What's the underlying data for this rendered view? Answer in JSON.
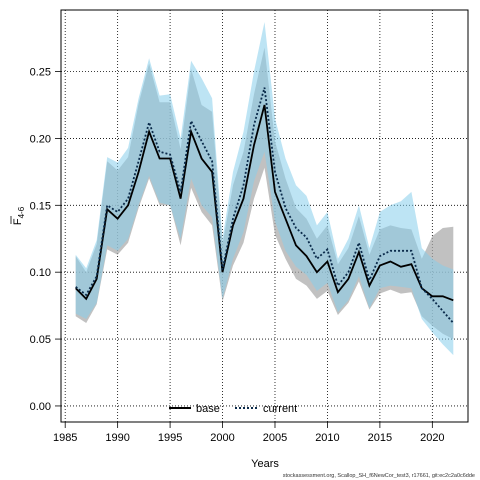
{
  "chart_data": {
    "type": "line",
    "xlabel": "Years",
    "ylabel_main": "F",
    "ylabel_sub": "4-6",
    "xlim": [
      1985,
      2022
    ],
    "ylim": [
      0.0,
      0.25
    ],
    "xticks": [
      1985,
      1990,
      1995,
      2000,
      2005,
      2010,
      2015,
      2020
    ],
    "yticks": [
      0.0,
      0.05,
      0.1,
      0.15,
      0.2,
      0.25
    ],
    "ytick_labels": [
      "0.00",
      "0.05",
      "0.10",
      "0.15",
      "0.20",
      "0.25"
    ],
    "grid": true,
    "legend_position": "bottom",
    "x": [
      1986,
      1987,
      1988,
      1989,
      1990,
      1991,
      1992,
      1993,
      1994,
      1995,
      1996,
      1997,
      1998,
      1999,
      2000,
      2001,
      2002,
      2003,
      2004,
      2005,
      2006,
      2007,
      2008,
      2009,
      2010,
      2011,
      2012,
      2013,
      2014,
      2015,
      2016,
      2017,
      2018,
      2019,
      2020,
      2021,
      2022
    ],
    "series": [
      {
        "name": "base",
        "color": "#000000",
        "band_color": "#a6a6a6",
        "line_style": "solid",
        "values": [
          0.088,
          0.08,
          0.095,
          0.147,
          0.14,
          0.15,
          0.175,
          0.205,
          0.185,
          0.185,
          0.155,
          0.205,
          0.185,
          0.175,
          0.1,
          0.135,
          0.155,
          0.195,
          0.225,
          0.16,
          0.14,
          0.12,
          0.112,
          0.1,
          0.108,
          0.085,
          0.095,
          0.115,
          0.09,
          0.105,
          0.108,
          0.104,
          0.106,
          0.088,
          0.082,
          0.082,
          0.079
        ],
        "lower": [
          0.067,
          0.062,
          0.076,
          0.117,
          0.113,
          0.122,
          0.148,
          0.17,
          0.15,
          0.15,
          0.12,
          0.163,
          0.145,
          0.135,
          0.078,
          0.105,
          0.122,
          0.155,
          0.178,
          0.128,
          0.11,
          0.095,
          0.09,
          0.08,
          0.086,
          0.068,
          0.077,
          0.093,
          0.072,
          0.084,
          0.087,
          0.084,
          0.085,
          0.067,
          0.06,
          0.054,
          0.05
        ],
        "upper": [
          0.112,
          0.1,
          0.121,
          0.183,
          0.176,
          0.186,
          0.226,
          0.256,
          0.227,
          0.227,
          0.192,
          0.252,
          0.225,
          0.22,
          0.121,
          0.165,
          0.19,
          0.233,
          0.268,
          0.198,
          0.17,
          0.148,
          0.14,
          0.125,
          0.135,
          0.106,
          0.118,
          0.142,
          0.113,
          0.132,
          0.135,
          0.133,
          0.132,
          0.11,
          0.127,
          0.133,
          0.134
        ]
      },
      {
        "name": "current",
        "color": "#0a2a4a",
        "band_color": "#87ceeb",
        "line_style": "dotted",
        "values": [
          0.089,
          0.083,
          0.097,
          0.15,
          0.145,
          0.155,
          0.183,
          0.212,
          0.19,
          0.188,
          0.16,
          0.213,
          0.198,
          0.183,
          0.102,
          0.14,
          0.165,
          0.21,
          0.238,
          0.175,
          0.148,
          0.133,
          0.126,
          0.11,
          0.117,
          0.09,
          0.1,
          0.122,
          0.094,
          0.112,
          0.116,
          0.116,
          0.116,
          0.088,
          0.08,
          0.071,
          0.062
        ],
        "lower": [
          0.069,
          0.065,
          0.077,
          0.12,
          0.116,
          0.125,
          0.15,
          0.172,
          0.152,
          0.15,
          0.125,
          0.17,
          0.15,
          0.141,
          0.08,
          0.11,
          0.13,
          0.168,
          0.19,
          0.138,
          0.116,
          0.104,
          0.098,
          0.086,
          0.092,
          0.07,
          0.079,
          0.097,
          0.073,
          0.088,
          0.09,
          0.089,
          0.088,
          0.065,
          0.055,
          0.046,
          0.038
        ],
        "upper": [
          0.113,
          0.103,
          0.124,
          0.186,
          0.182,
          0.193,
          0.23,
          0.26,
          0.232,
          0.233,
          0.2,
          0.258,
          0.245,
          0.23,
          0.125,
          0.175,
          0.205,
          0.25,
          0.287,
          0.215,
          0.185,
          0.165,
          0.157,
          0.135,
          0.145,
          0.11,
          0.125,
          0.15,
          0.118,
          0.145,
          0.15,
          0.153,
          0.16,
          0.118,
          0.11,
          0.105,
          0.102
        ]
      }
    ]
  },
  "footer_text": "stockassessment.org, Scallop_SH_f6NewCor_test3, r17661, git:ec2c2a0c6dde"
}
